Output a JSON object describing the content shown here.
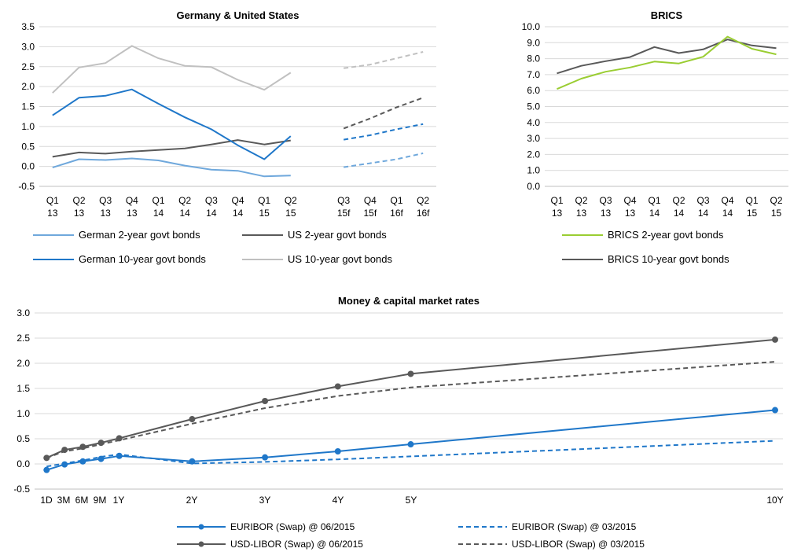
{
  "chart_data": [
    {
      "id": "germany-us",
      "type": "line",
      "title": "Germany & United States",
      "ylim": [
        -0.5,
        3.5
      ],
      "yticks": [
        "3.5",
        "3.0",
        "2.5",
        "2.0",
        "1.5",
        "1.0",
        "0.5",
        "0.0",
        "-0.5"
      ],
      "categories": [
        [
          "Q1",
          "13"
        ],
        [
          "Q2",
          "13"
        ],
        [
          "Q3",
          "13"
        ],
        [
          "Q4",
          "13"
        ],
        [
          "Q1",
          "14"
        ],
        [
          "Q2",
          "14"
        ],
        [
          "Q3",
          "14"
        ],
        [
          "Q4",
          "14"
        ],
        [
          "Q1",
          "15"
        ],
        [
          "Q2",
          "15"
        ],
        [
          "",
          ""
        ],
        [
          "Q3",
          "15f"
        ],
        [
          "Q4",
          "15f"
        ],
        [
          "Q1",
          "16f"
        ],
        [
          "Q2",
          "16f"
        ]
      ],
      "grid": true,
      "legend_position": "bottom",
      "series": [
        {
          "name": "German 2-year govt bonds",
          "color": "#6fa8dc",
          "actual": [
            -0.03,
            0.18,
            0.16,
            0.2,
            0.15,
            0.02,
            -0.08,
            -0.11,
            -0.25,
            -0.23
          ],
          "forecast": [
            -0.02,
            0.08,
            0.18,
            0.33
          ]
        },
        {
          "name": "US 2-year govt bonds",
          "color": "#595959",
          "actual": [
            0.24,
            0.35,
            0.32,
            0.37,
            0.41,
            0.45,
            0.55,
            0.66,
            0.55,
            0.65
          ],
          "forecast": [
            0.95,
            1.2,
            1.48,
            1.72
          ]
        },
        {
          "name": "German 10-year govt bonds",
          "color": "#1f77c9",
          "actual": [
            1.28,
            1.72,
            1.77,
            1.93,
            1.57,
            1.23,
            0.93,
            0.53,
            0.18,
            0.76
          ],
          "forecast": [
            0.67,
            0.78,
            0.93,
            1.06
          ]
        },
        {
          "name": "US 10-year govt bonds",
          "color": "#c0c0c0",
          "actual": [
            1.84,
            2.48,
            2.59,
            3.02,
            2.71,
            2.52,
            2.49,
            2.17,
            1.92,
            2.35
          ],
          "forecast": [
            2.46,
            2.55,
            2.71,
            2.87
          ]
        }
      ]
    },
    {
      "id": "brics",
      "type": "line",
      "title": "BRICS",
      "ylim": [
        0,
        10
      ],
      "yticks": [
        "10.0",
        "9.0",
        "8.0",
        "7.0",
        "6.0",
        "5.0",
        "4.0",
        "3.0",
        "2.0",
        "1.0",
        "0.0"
      ],
      "categories": [
        [
          "Q1",
          "13"
        ],
        [
          "Q2",
          "13"
        ],
        [
          "Q3",
          "13"
        ],
        [
          "Q4",
          "13"
        ],
        [
          "Q1",
          "14"
        ],
        [
          "Q2",
          "14"
        ],
        [
          "Q3",
          "14"
        ],
        [
          "Q4",
          "14"
        ],
        [
          "Q1",
          "15"
        ],
        [
          "Q2",
          "15"
        ]
      ],
      "grid": true,
      "legend_position": "bottom",
      "series": [
        {
          "name": "BRICS 2-year govt bonds",
          "color": "#9acd32",
          "values": [
            6.1,
            6.75,
            7.18,
            7.45,
            7.82,
            7.7,
            8.12,
            9.38,
            8.62,
            8.27
          ]
        },
        {
          "name": "BRICS 10-year govt bonds",
          "color": "#595959",
          "values": [
            7.08,
            7.55,
            7.84,
            8.1,
            8.73,
            8.35,
            8.58,
            9.2,
            8.83,
            8.66
          ]
        }
      ]
    },
    {
      "id": "money-capital",
      "type": "line",
      "title": "Money & capital market rates",
      "ylim": [
        -0.5,
        3.0
      ],
      "yticks": [
        "3.0",
        "2.5",
        "2.0",
        "1.5",
        "1.0",
        "0.5",
        "0.0",
        "-0.5"
      ],
      "x_scale": "maturity in years",
      "x": [
        0.003,
        0.25,
        0.5,
        0.75,
        1,
        2,
        3,
        4,
        5,
        10
      ],
      "xlabels": [
        "1D",
        "3M",
        "6M",
        "9M",
        "1Y",
        "2Y",
        "3Y",
        "4Y",
        "5Y",
        "10Y"
      ],
      "grid": true,
      "legend_position": "bottom",
      "series": [
        {
          "name": "EURIBOR (Swap) @ 06/2015",
          "color": "#1f77c9",
          "style": "solid",
          "markers": true,
          "values": [
            -0.12,
            -0.01,
            0.05,
            0.1,
            0.16,
            0.05,
            0.13,
            0.25,
            0.39,
            1.07
          ]
        },
        {
          "name": "EURIBOR (Swap) @ 03/2015",
          "color": "#1f77c9",
          "style": "dashed",
          "markers": false,
          "values": [
            -0.05,
            0.01,
            0.07,
            0.14,
            0.19,
            0.01,
            0.04,
            0.09,
            0.15,
            0.46
          ]
        },
        {
          "name": "USD-LIBOR (Swap) @ 06/2015",
          "color": "#595959",
          "style": "solid",
          "markers": true,
          "values": [
            0.12,
            0.28,
            0.34,
            0.42,
            0.51,
            0.89,
            1.25,
            1.54,
            1.79,
            2.47
          ]
        },
        {
          "name": "USD-LIBOR (Swap) @ 03/2015",
          "color": "#595959",
          "style": "dashed",
          "markers": false,
          "values": [
            0.12,
            0.25,
            0.31,
            0.39,
            0.47,
            0.8,
            1.11,
            1.35,
            1.52,
            2.03
          ]
        }
      ]
    }
  ]
}
